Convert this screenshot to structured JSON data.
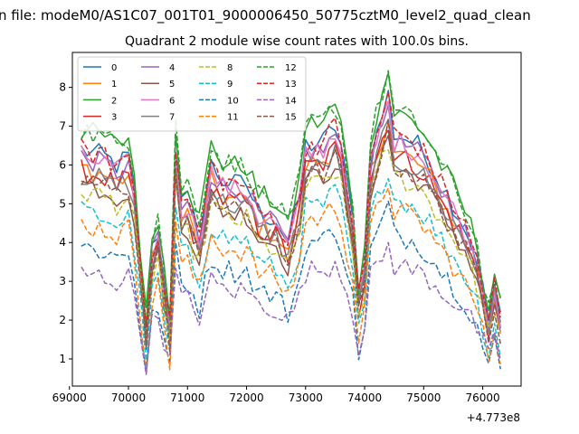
{
  "chart_data": {
    "type": "line",
    "suptitle": "n file: modeM0/AS1C07_001T01_9000006450_50775cztM0_level2_quad_clean",
    "title": "Quadrant 2 module wise count rates with 100.0s bins.",
    "xlabel": "",
    "ylabel": "",
    "offset_label": "+4.773e8",
    "x_offset": 477300000,
    "xlim": [
      69050,
      76650
    ],
    "ylim": [
      0.3,
      8.9
    ],
    "xticks": [
      69000,
      70000,
      71000,
      72000,
      73000,
      74000,
      75000,
      76000
    ],
    "yticks": [
      1,
      2,
      3,
      4,
      5,
      6,
      7,
      8
    ],
    "legend_location": "top-left",
    "legend_columns": 4,
    "x": {
      "start": 69200,
      "step": 100,
      "count": 72
    },
    "anchors": [
      69200,
      69600,
      69800,
      70000,
      70100,
      70200,
      70300,
      70400,
      70500,
      70700,
      70800,
      70900,
      71000,
      71200,
      71400,
      71600,
      71800,
      72000,
      72200,
      72500,
      72700,
      72900,
      73000,
      73300,
      73500,
      73600,
      73800,
      73900,
      74000,
      74100,
      74300,
      74400,
      74500,
      74700,
      74900,
      75100,
      75300,
      75500,
      75700,
      75900,
      76100,
      76200,
      76300
    ],
    "profile": [
      6.4,
      6.2,
      6.0,
      6.2,
      5.3,
      3.5,
      1.8,
      3.8,
      4.3,
      1.8,
      6.5,
      5.0,
      5.1,
      4.2,
      6.0,
      5.6,
      5.5,
      5.5,
      4.8,
      4.6,
      4.0,
      5.2,
      6.5,
      6.6,
      7.0,
      6.5,
      4.5,
      2.6,
      3.4,
      6.2,
      7.3,
      7.8,
      6.8,
      6.7,
      6.5,
      6.1,
      5.5,
      5.0,
      4.4,
      3.6,
      2.0,
      2.9,
      2.0
    ],
    "series": [
      {
        "name": "0",
        "color": "#1f77b4",
        "dash": "solid",
        "scale": 1.0,
        "shift": 0.0
      },
      {
        "name": "1",
        "color": "#ff7f0e",
        "dash": "solid",
        "scale": 0.95,
        "shift": -0.15
      },
      {
        "name": "2",
        "color": "#2ca02c",
        "dash": "solid",
        "scale": 1.05,
        "shift": 0.2
      },
      {
        "name": "3",
        "color": "#d62728",
        "dash": "solid",
        "scale": 0.93,
        "shift": -0.1
      },
      {
        "name": "4",
        "color": "#9467bd",
        "dash": "solid",
        "scale": 0.97,
        "shift": 0.0
      },
      {
        "name": "5",
        "color": "#8c564b",
        "dash": "solid",
        "scale": 0.88,
        "shift": -0.1
      },
      {
        "name": "6",
        "color": "#e377c2",
        "dash": "solid",
        "scale": 0.98,
        "shift": -0.05
      },
      {
        "name": "7",
        "color": "#7f7f7f",
        "dash": "solid",
        "scale": 0.9,
        "shift": 0.0
      },
      {
        "name": "8",
        "color": "#bcbd22",
        "dash": "dashed",
        "scale": 0.85,
        "shift": -0.1
      },
      {
        "name": "9",
        "color": "#17becf",
        "dash": "dashed",
        "scale": 0.82,
        "shift": -0.45
      },
      {
        "name": "10",
        "color": "#1f77b4",
        "dash": "dashed",
        "scale": 0.72,
        "shift": -0.7
      },
      {
        "name": "11",
        "color": "#ff7f0e",
        "dash": "dashed",
        "scale": 0.78,
        "shift": -0.5
      },
      {
        "name": "12",
        "color": "#2ca02c",
        "dash": "dashed",
        "scale": 1.05,
        "shift": 0.2
      },
      {
        "name": "13",
        "color": "#d62728",
        "dash": "dashed",
        "scale": 1.0,
        "shift": 0.0
      },
      {
        "name": "14",
        "color": "#9467bd",
        "dash": "dashed",
        "scale": 0.5,
        "shift": 0.0
      },
      {
        "name": "15",
        "color": "#8c564b",
        "dash": "dashed",
        "scale": 0.9,
        "shift": -0.15
      }
    ]
  }
}
